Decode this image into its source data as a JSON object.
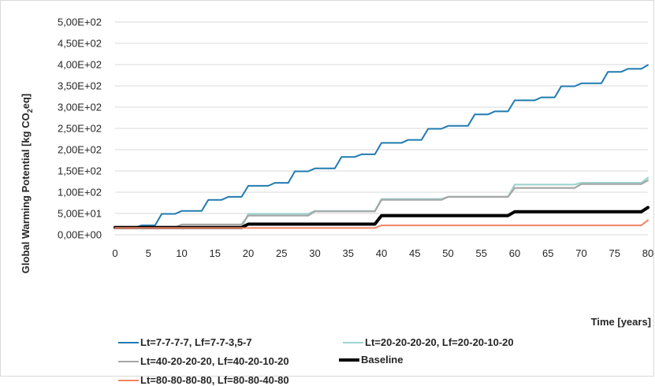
{
  "chart_data": {
    "type": "line",
    "ylabel_main": "Global Warming Potential [kg CO",
    "ylabel_sub": "2",
    "ylabel_end": "eq]",
    "xlabel": "Time [years]",
    "xlim": [
      0,
      80
    ],
    "ylim": [
      0,
      500
    ],
    "x_ticks": [
      0,
      5,
      10,
      15,
      20,
      25,
      30,
      35,
      40,
      45,
      50,
      55,
      60,
      65,
      70,
      75,
      80
    ],
    "y_ticks": [
      {
        "value": 0,
        "label": "0,00E+00"
      },
      {
        "value": 50,
        "label": "5,00E+01"
      },
      {
        "value": 100,
        "label": "1,00E+02"
      },
      {
        "value": 150,
        "label": "1,50E+02"
      },
      {
        "value": 200,
        "label": "2,00E+02"
      },
      {
        "value": 250,
        "label": "2,50E+02"
      },
      {
        "value": 300,
        "label": "3,00E+02"
      },
      {
        "value": 350,
        "label": "3,50E+02"
      },
      {
        "value": 400,
        "label": "4,00E+02"
      },
      {
        "value": 450,
        "label": "4,50E+02"
      },
      {
        "value": 500,
        "label": "5,00E+02"
      }
    ],
    "grid": "horizontal",
    "legend_position": "bottom",
    "series": [
      {
        "name": "Lt=7-7-7-7, Lf=7-7-3,5-7",
        "color": "#1f7bb0",
        "width": 2,
        "x": [
          0,
          3,
          4,
          6,
          7,
          9,
          10,
          13,
          14,
          16,
          17,
          19,
          20,
          23,
          24,
          26,
          27,
          29,
          30,
          33,
          34,
          36,
          37,
          39,
          40,
          43,
          44,
          46,
          47,
          49,
          50,
          53,
          54,
          56,
          57,
          59,
          60,
          63,
          64,
          66,
          67,
          69,
          70,
          73,
          74,
          76,
          77,
          79,
          80
        ],
        "y": [
          17,
          17,
          22,
          22,
          49,
          49,
          56,
          56,
          82,
          82,
          89,
          89,
          115,
          115,
          122,
          122,
          149,
          149,
          156,
          156,
          183,
          183,
          189,
          189,
          216,
          216,
          223,
          223,
          249,
          249,
          256,
          256,
          283,
          283,
          290,
          290,
          316,
          316,
          323,
          323,
          349,
          349,
          356,
          356,
          383,
          383,
          390,
          390,
          399
        ]
      },
      {
        "name": "Lt=20-20-20-20, Lf=20-20-10-20",
        "color": "#9dd3cf",
        "width": 2.2,
        "x": [
          0,
          19,
          20,
          29,
          30,
          39,
          40,
          49,
          50,
          59,
          60,
          69,
          70,
          79,
          80
        ],
        "y": [
          17,
          17,
          49,
          49,
          56,
          56,
          84,
          84,
          89,
          89,
          118,
          118,
          122,
          122,
          134
        ]
      },
      {
        "name": "Lt=40-20-20-20, Lf=40-20-10-20",
        "color": "#a6a6a6",
        "width": 2.2,
        "x": [
          0,
          9,
          10,
          19,
          20,
          29,
          30,
          39,
          40,
          49,
          50,
          59,
          60,
          69,
          70,
          79,
          80
        ],
        "y": [
          17,
          17,
          24,
          24,
          45,
          45,
          55,
          55,
          82,
          82,
          89,
          89,
          110,
          110,
          119,
          119,
          128
        ]
      },
      {
        "name": "Baseline",
        "color": "#000000",
        "width": 4,
        "x": [
          0,
          19,
          20,
          39,
          40,
          59,
          60,
          79,
          80
        ],
        "y": [
          17,
          17,
          25,
          25,
          45,
          45,
          54,
          54,
          64
        ]
      },
      {
        "name": "Lt=80-80-80-80, Lf=80-80-40-80",
        "color": "#f08465",
        "width": 2,
        "x": [
          0,
          39,
          40,
          79,
          80
        ],
        "y": [
          16,
          16,
          22,
          22,
          34
        ]
      }
    ]
  }
}
